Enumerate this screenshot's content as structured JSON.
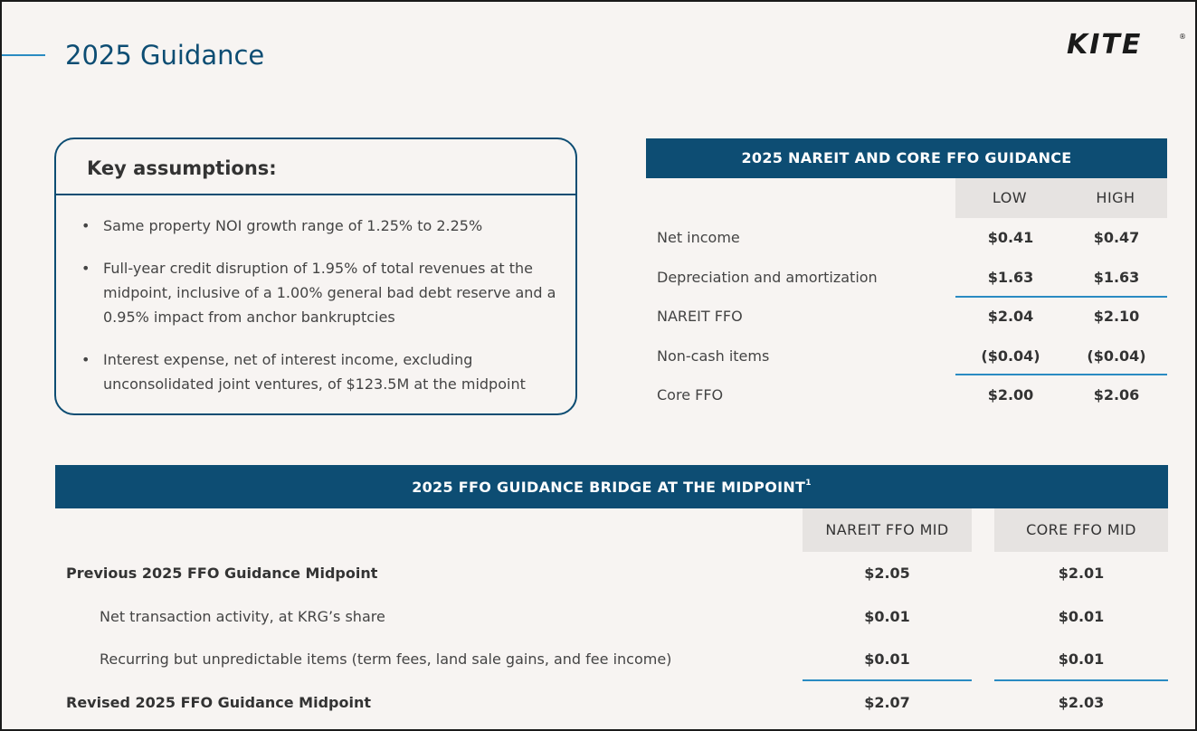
{
  "title": "2025 Guidance",
  "logo": {
    "text": "KITE",
    "reg": "®"
  },
  "assumptions": {
    "heading": "Key assumptions:",
    "items": [
      "Same property NOI growth range of 1.25% to 2.25%",
      "Full-year credit disruption of 1.95% of total revenues at the midpoint, inclusive of a 1.00% general bad debt reserve and a 0.95% impact from anchor bankruptcies",
      "Interest expense, net of interest income, excluding unconsolidated joint ventures, of $123.5M at the midpoint"
    ]
  },
  "ffo_guidance": {
    "heading": "2025 NAREIT AND CORE FFO GUIDANCE",
    "columns": [
      "LOW",
      "HIGH"
    ],
    "rows": [
      {
        "label": "Net income",
        "low": "$0.41",
        "high": "$0.47"
      },
      {
        "label": "Depreciation and amortization",
        "low": "$1.63",
        "high": "$1.63"
      },
      {
        "label": "NAREIT FFO",
        "low": "$2.04",
        "high": "$2.10"
      },
      {
        "label": "Non-cash items",
        "low": "($0.04)",
        "high": "($0.04)"
      },
      {
        "label": "Core FFO",
        "low": "$2.00",
        "high": "$2.06"
      }
    ]
  },
  "bridge": {
    "heading": "2025 FFO GUIDANCE BRIDGE AT THE MIDPOINT",
    "footnote_marker": "1",
    "columns": [
      "NAREIT FFO MID",
      "CORE FFO MID"
    ],
    "rows": [
      {
        "label": "Previous 2025 FFO Guidance Midpoint",
        "nareit": "$2.05",
        "core": "$2.01"
      },
      {
        "label": "Net transaction activity, at KRG’s share",
        "nareit": "$0.01",
        "core": "$0.01"
      },
      {
        "label": "Recurring but unpredictable items (term fees, land sale gains, and fee income)",
        "nareit": "$0.01",
        "core": "$0.01"
      },
      {
        "label": "Revised 2025 FFO Guidance Midpoint",
        "nareit": "$2.07",
        "core": "$2.03"
      }
    ]
  }
}
